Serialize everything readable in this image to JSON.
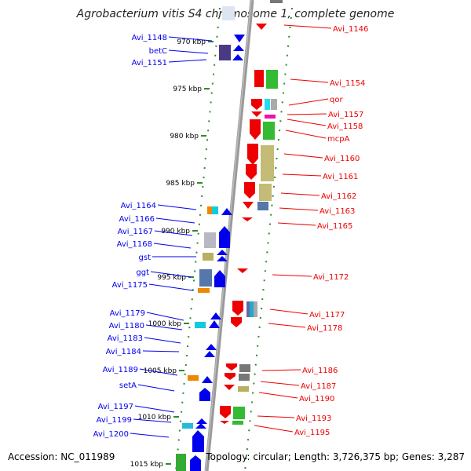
{
  "title": "Agrobacterium vitis S4 chromosome 1, complete genome",
  "footer": {
    "accession": "Accession: NC_011989",
    "summary": "Topology: circular; Length: 3,726,375 bp; Genes: 3,287"
  },
  "colors": {
    "forward": "#0000ee",
    "reverse": "#ee0000",
    "axis": "#8a8a8a",
    "ticks": "#2e8b2e"
  },
  "ticks": [
    "970 kbp",
    "975 kbp",
    "980 kbp",
    "985 kbp",
    "990 kbp",
    "995 kbp",
    "1000 kbp",
    "1005 kbp",
    "1010 kbp",
    "1015 kbp"
  ],
  "left_labels": [
    "Avi_1148",
    "betC",
    "Avi_1151",
    "Avi_1164",
    "Avi_1166",
    "Avi_1167",
    "Avi_1168",
    "gst",
    "ggt",
    "Avi_1175",
    "Avi_1179",
    "Avi_1180",
    "Avi_1183",
    "Avi_1184",
    "Avi_1189",
    "setA",
    "Avi_1197",
    "Avi_1199",
    "Avi_1200"
  ],
  "right_labels": [
    "Avi_1146",
    "Avi_1154",
    "qor",
    "Avi_1157",
    "Avi_1158",
    "mcpA",
    "Avi_1160",
    "Avi_1161",
    "Avi_1162",
    "Avi_1163",
    "Avi_1165",
    "Avi_1172",
    "Avi_1177",
    "Avi_1178",
    "Avi_1186",
    "Avi_1187",
    "Avi_1190",
    "Avi_1193",
    "Avi_1195"
  ]
}
